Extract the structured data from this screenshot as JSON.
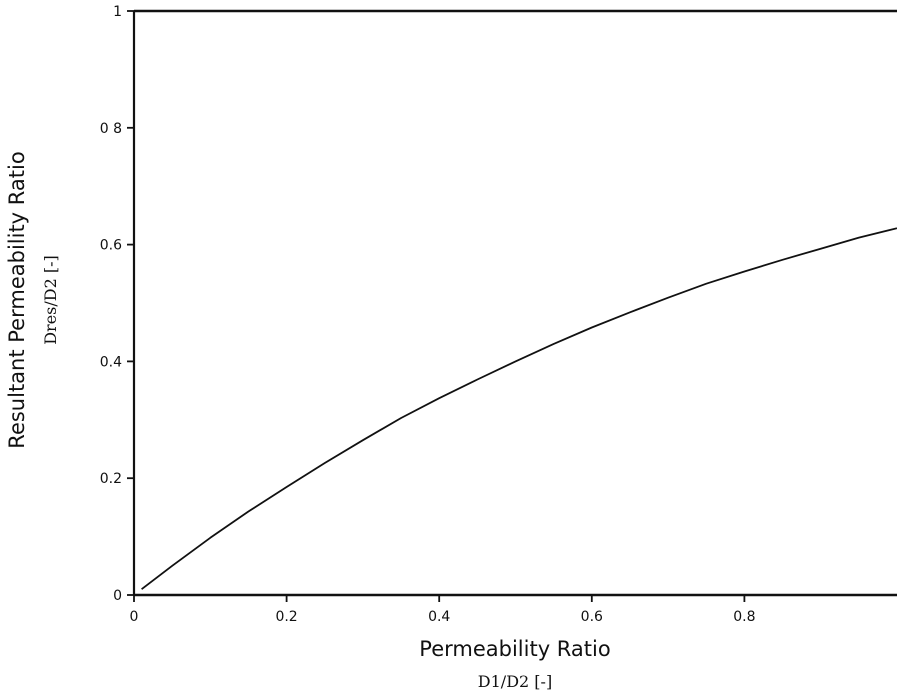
{
  "chart_data": {
    "type": "line",
    "title": "",
    "xlabel": "Permeability Ratio",
    "xlabel_unit": "D1/D2 [-]",
    "ylabel": "Resultant Permeability Ratio",
    "ylabel_unit": "Dres/D2 [-]",
    "xlim": [
      0,
      1
    ],
    "ylim": [
      0,
      1
    ],
    "grid": false,
    "legend": "none",
    "x_ticks": [
      0,
      0.2,
      0.4,
      0.6,
      0.8
    ],
    "x_tick_labels": [
      "0",
      "0.2",
      "0.4",
      "0.6",
      "0.8"
    ],
    "y_ticks": [
      0,
      0.2,
      0.4,
      0.6,
      0.8,
      1
    ],
    "y_tick_labels": [
      "0",
      "0.2",
      "0.4",
      "0.6",
      "0 8",
      "1"
    ],
    "series": [
      {
        "x": [
          0.01,
          0.05,
          0.1,
          0.15,
          0.2,
          0.25,
          0.3,
          0.35,
          0.4,
          0.45,
          0.5,
          0.55,
          0.6,
          0.65,
          0.7,
          0.75,
          0.8,
          0.85,
          0.9,
          0.95,
          1.0
        ],
        "y": [
          0.01,
          0.05,
          0.098,
          0.143,
          0.185,
          0.226,
          0.265,
          0.303,
          0.337,
          0.369,
          0.4,
          0.43,
          0.458,
          0.484,
          0.509,
          0.533,
          0.554,
          0.574,
          0.593,
          0.612,
          0.628
        ]
      }
    ]
  }
}
